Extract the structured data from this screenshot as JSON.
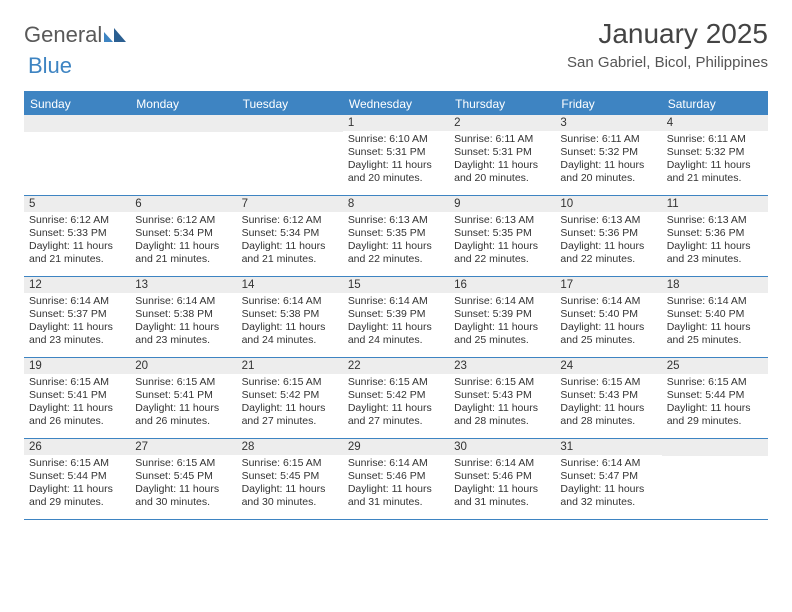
{
  "logo": {
    "text1": "General",
    "text2": "Blue"
  },
  "title": "January 2025",
  "location": "San Gabriel, Bicol, Philippines",
  "colors": {
    "accent": "#3e84c2",
    "header_text": "#ffffff",
    "daynum_bg": "#ededed",
    "text": "#333333",
    "logo_gray": "#595959",
    "background": "#ffffff"
  },
  "fonts": {
    "title_size": 28,
    "location_size": 15,
    "header_size": 12,
    "cell_size": 10.5,
    "daynum_size": 11.5
  },
  "day_labels": [
    "Sunday",
    "Monday",
    "Tuesday",
    "Wednesday",
    "Thursday",
    "Friday",
    "Saturday"
  ],
  "weeks": [
    [
      {
        "n": "",
        "sunrise": "",
        "sunset": "",
        "daylight": ""
      },
      {
        "n": "",
        "sunrise": "",
        "sunset": "",
        "daylight": ""
      },
      {
        "n": "",
        "sunrise": "",
        "sunset": "",
        "daylight": ""
      },
      {
        "n": "1",
        "sunrise": "Sunrise: 6:10 AM",
        "sunset": "Sunset: 5:31 PM",
        "daylight": "Daylight: 11 hours and 20 minutes."
      },
      {
        "n": "2",
        "sunrise": "Sunrise: 6:11 AM",
        "sunset": "Sunset: 5:31 PM",
        "daylight": "Daylight: 11 hours and 20 minutes."
      },
      {
        "n": "3",
        "sunrise": "Sunrise: 6:11 AM",
        "sunset": "Sunset: 5:32 PM",
        "daylight": "Daylight: 11 hours and 20 minutes."
      },
      {
        "n": "4",
        "sunrise": "Sunrise: 6:11 AM",
        "sunset": "Sunset: 5:32 PM",
        "daylight": "Daylight: 11 hours and 21 minutes."
      }
    ],
    [
      {
        "n": "5",
        "sunrise": "Sunrise: 6:12 AM",
        "sunset": "Sunset: 5:33 PM",
        "daylight": "Daylight: 11 hours and 21 minutes."
      },
      {
        "n": "6",
        "sunrise": "Sunrise: 6:12 AM",
        "sunset": "Sunset: 5:34 PM",
        "daylight": "Daylight: 11 hours and 21 minutes."
      },
      {
        "n": "7",
        "sunrise": "Sunrise: 6:12 AM",
        "sunset": "Sunset: 5:34 PM",
        "daylight": "Daylight: 11 hours and 21 minutes."
      },
      {
        "n": "8",
        "sunrise": "Sunrise: 6:13 AM",
        "sunset": "Sunset: 5:35 PM",
        "daylight": "Daylight: 11 hours and 22 minutes."
      },
      {
        "n": "9",
        "sunrise": "Sunrise: 6:13 AM",
        "sunset": "Sunset: 5:35 PM",
        "daylight": "Daylight: 11 hours and 22 minutes."
      },
      {
        "n": "10",
        "sunrise": "Sunrise: 6:13 AM",
        "sunset": "Sunset: 5:36 PM",
        "daylight": "Daylight: 11 hours and 22 minutes."
      },
      {
        "n": "11",
        "sunrise": "Sunrise: 6:13 AM",
        "sunset": "Sunset: 5:36 PM",
        "daylight": "Daylight: 11 hours and 23 minutes."
      }
    ],
    [
      {
        "n": "12",
        "sunrise": "Sunrise: 6:14 AM",
        "sunset": "Sunset: 5:37 PM",
        "daylight": "Daylight: 11 hours and 23 minutes."
      },
      {
        "n": "13",
        "sunrise": "Sunrise: 6:14 AM",
        "sunset": "Sunset: 5:38 PM",
        "daylight": "Daylight: 11 hours and 23 minutes."
      },
      {
        "n": "14",
        "sunrise": "Sunrise: 6:14 AM",
        "sunset": "Sunset: 5:38 PM",
        "daylight": "Daylight: 11 hours and 24 minutes."
      },
      {
        "n": "15",
        "sunrise": "Sunrise: 6:14 AM",
        "sunset": "Sunset: 5:39 PM",
        "daylight": "Daylight: 11 hours and 24 minutes."
      },
      {
        "n": "16",
        "sunrise": "Sunrise: 6:14 AM",
        "sunset": "Sunset: 5:39 PM",
        "daylight": "Daylight: 11 hours and 25 minutes."
      },
      {
        "n": "17",
        "sunrise": "Sunrise: 6:14 AM",
        "sunset": "Sunset: 5:40 PM",
        "daylight": "Daylight: 11 hours and 25 minutes."
      },
      {
        "n": "18",
        "sunrise": "Sunrise: 6:14 AM",
        "sunset": "Sunset: 5:40 PM",
        "daylight": "Daylight: 11 hours and 25 minutes."
      }
    ],
    [
      {
        "n": "19",
        "sunrise": "Sunrise: 6:15 AM",
        "sunset": "Sunset: 5:41 PM",
        "daylight": "Daylight: 11 hours and 26 minutes."
      },
      {
        "n": "20",
        "sunrise": "Sunrise: 6:15 AM",
        "sunset": "Sunset: 5:41 PM",
        "daylight": "Daylight: 11 hours and 26 minutes."
      },
      {
        "n": "21",
        "sunrise": "Sunrise: 6:15 AM",
        "sunset": "Sunset: 5:42 PM",
        "daylight": "Daylight: 11 hours and 27 minutes."
      },
      {
        "n": "22",
        "sunrise": "Sunrise: 6:15 AM",
        "sunset": "Sunset: 5:42 PM",
        "daylight": "Daylight: 11 hours and 27 minutes."
      },
      {
        "n": "23",
        "sunrise": "Sunrise: 6:15 AM",
        "sunset": "Sunset: 5:43 PM",
        "daylight": "Daylight: 11 hours and 28 minutes."
      },
      {
        "n": "24",
        "sunrise": "Sunrise: 6:15 AM",
        "sunset": "Sunset: 5:43 PM",
        "daylight": "Daylight: 11 hours and 28 minutes."
      },
      {
        "n": "25",
        "sunrise": "Sunrise: 6:15 AM",
        "sunset": "Sunset: 5:44 PM",
        "daylight": "Daylight: 11 hours and 29 minutes."
      }
    ],
    [
      {
        "n": "26",
        "sunrise": "Sunrise: 6:15 AM",
        "sunset": "Sunset: 5:44 PM",
        "daylight": "Daylight: 11 hours and 29 minutes."
      },
      {
        "n": "27",
        "sunrise": "Sunrise: 6:15 AM",
        "sunset": "Sunset: 5:45 PM",
        "daylight": "Daylight: 11 hours and 30 minutes."
      },
      {
        "n": "28",
        "sunrise": "Sunrise: 6:15 AM",
        "sunset": "Sunset: 5:45 PM",
        "daylight": "Daylight: 11 hours and 30 minutes."
      },
      {
        "n": "29",
        "sunrise": "Sunrise: 6:14 AM",
        "sunset": "Sunset: 5:46 PM",
        "daylight": "Daylight: 11 hours and 31 minutes."
      },
      {
        "n": "30",
        "sunrise": "Sunrise: 6:14 AM",
        "sunset": "Sunset: 5:46 PM",
        "daylight": "Daylight: 11 hours and 31 minutes."
      },
      {
        "n": "31",
        "sunrise": "Sunrise: 6:14 AM",
        "sunset": "Sunset: 5:47 PM",
        "daylight": "Daylight: 11 hours and 32 minutes."
      },
      {
        "n": "",
        "sunrise": "",
        "sunset": "",
        "daylight": ""
      }
    ]
  ]
}
